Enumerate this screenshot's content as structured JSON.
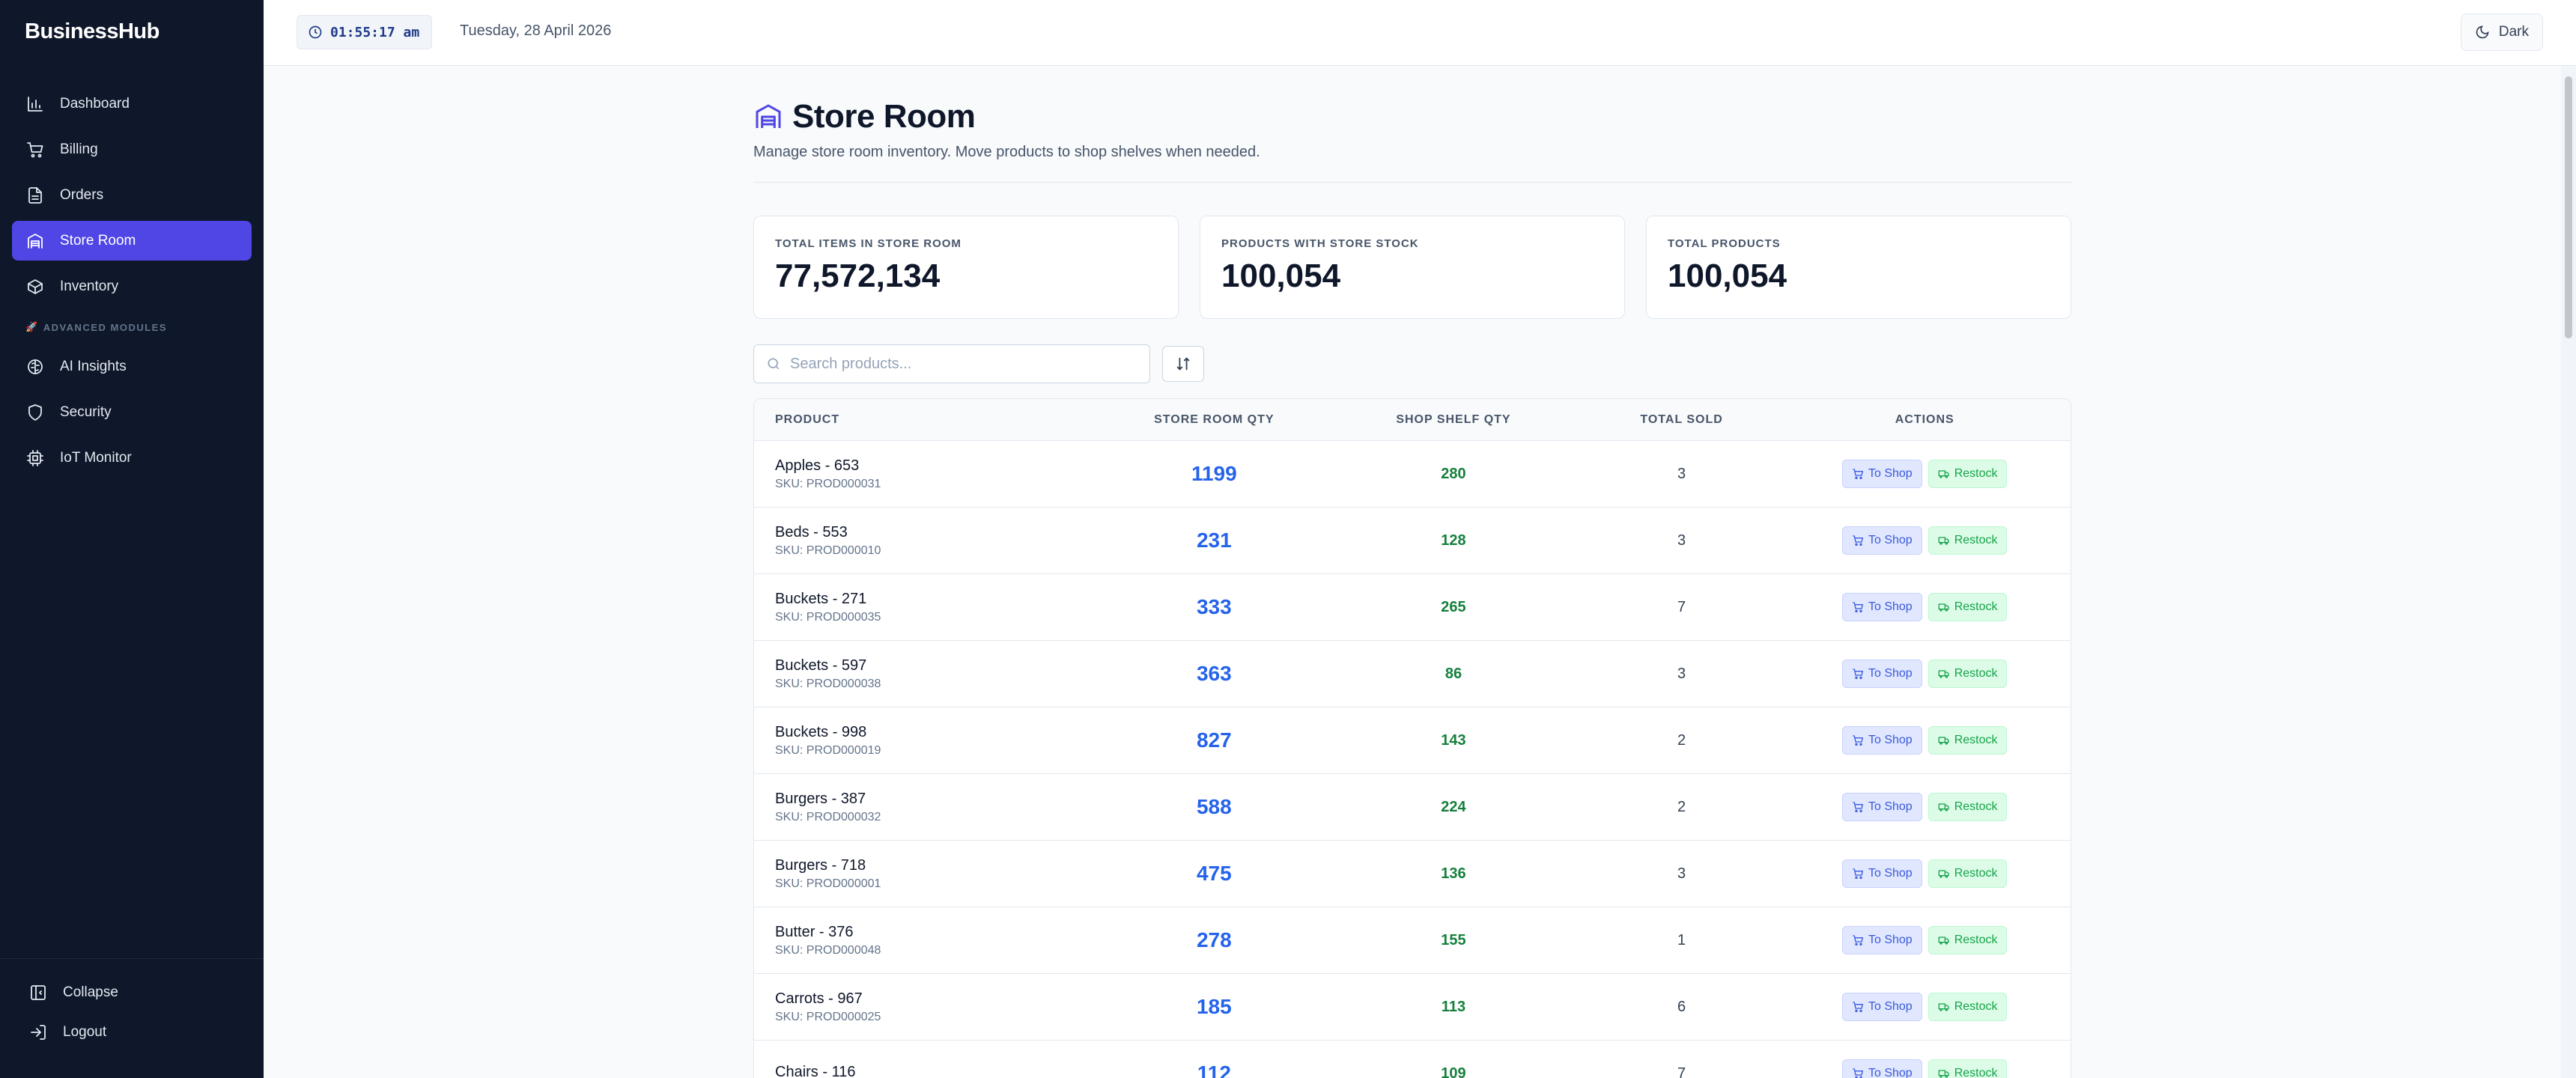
{
  "brand": "BusinessHub",
  "sidebar": {
    "items": [
      {
        "label": "Dashboard",
        "icon": "bar-chart-icon"
      },
      {
        "label": "Billing",
        "icon": "cart-icon"
      },
      {
        "label": "Orders",
        "icon": "document-icon"
      },
      {
        "label": "Store Room",
        "icon": "warehouse-icon",
        "active": true
      },
      {
        "label": "Inventory",
        "icon": "package-icon"
      }
    ],
    "section_label": "ADVANCED MODULES",
    "advanced_items": [
      {
        "label": "AI Insights",
        "icon": "brain-icon"
      },
      {
        "label": "Security",
        "icon": "shield-icon"
      },
      {
        "label": "IoT Monitor",
        "icon": "chip-icon"
      }
    ],
    "collapse_label": "Collapse",
    "logout_label": "Logout"
  },
  "topbar": {
    "time": "01:55:17 am",
    "date": "Tuesday, 28 April 2026",
    "theme_label": "Dark"
  },
  "page": {
    "title": "Store Room",
    "subtitle": "Manage store room inventory. Move products to shop shelves when needed."
  },
  "stats": [
    {
      "label": "TOTAL ITEMS IN STORE ROOM",
      "value": "77,572,134"
    },
    {
      "label": "PRODUCTS WITH STORE STOCK",
      "value": "100,054"
    },
    {
      "label": "TOTAL PRODUCTS",
      "value": "100,054"
    }
  ],
  "search": {
    "placeholder": "Search products..."
  },
  "table": {
    "headers": [
      "PRODUCT",
      "STORE ROOM QTY",
      "SHOP SHELF QTY",
      "TOTAL SOLD",
      "ACTIONS"
    ],
    "to_shop_label": "To Shop",
    "restock_label": "Restock",
    "rows": [
      {
        "name": "Apples - 653",
        "sku": "SKU: PROD000031",
        "store_qty": "1199",
        "shelf_qty": "280",
        "sold": "3"
      },
      {
        "name": "Beds - 553",
        "sku": "SKU: PROD000010",
        "store_qty": "231",
        "shelf_qty": "128",
        "sold": "3"
      },
      {
        "name": "Buckets - 271",
        "sku": "SKU: PROD000035",
        "store_qty": "333",
        "shelf_qty": "265",
        "sold": "7"
      },
      {
        "name": "Buckets - 597",
        "sku": "SKU: PROD000038",
        "store_qty": "363",
        "shelf_qty": "86",
        "sold": "3"
      },
      {
        "name": "Buckets - 998",
        "sku": "SKU: PROD000019",
        "store_qty": "827",
        "shelf_qty": "143",
        "sold": "2"
      },
      {
        "name": "Burgers - 387",
        "sku": "SKU: PROD000032",
        "store_qty": "588",
        "shelf_qty": "224",
        "sold": "2"
      },
      {
        "name": "Burgers - 718",
        "sku": "SKU: PROD000001",
        "store_qty": "475",
        "shelf_qty": "136",
        "sold": "3"
      },
      {
        "name": "Butter - 376",
        "sku": "SKU: PROD000048",
        "store_qty": "278",
        "shelf_qty": "155",
        "sold": "1"
      },
      {
        "name": "Carrots - 967",
        "sku": "SKU: PROD000025",
        "store_qty": "185",
        "shelf_qty": "113",
        "sold": "6"
      },
      {
        "name": "Chairs - 116",
        "sku": "",
        "store_qty": "112",
        "shelf_qty": "109",
        "sold": "7"
      }
    ]
  },
  "colors": {
    "sidebar_bg": "#0f172a",
    "accent": "#4f46e5",
    "store_qty": "#2563eb",
    "shelf_qty": "#15803d"
  }
}
